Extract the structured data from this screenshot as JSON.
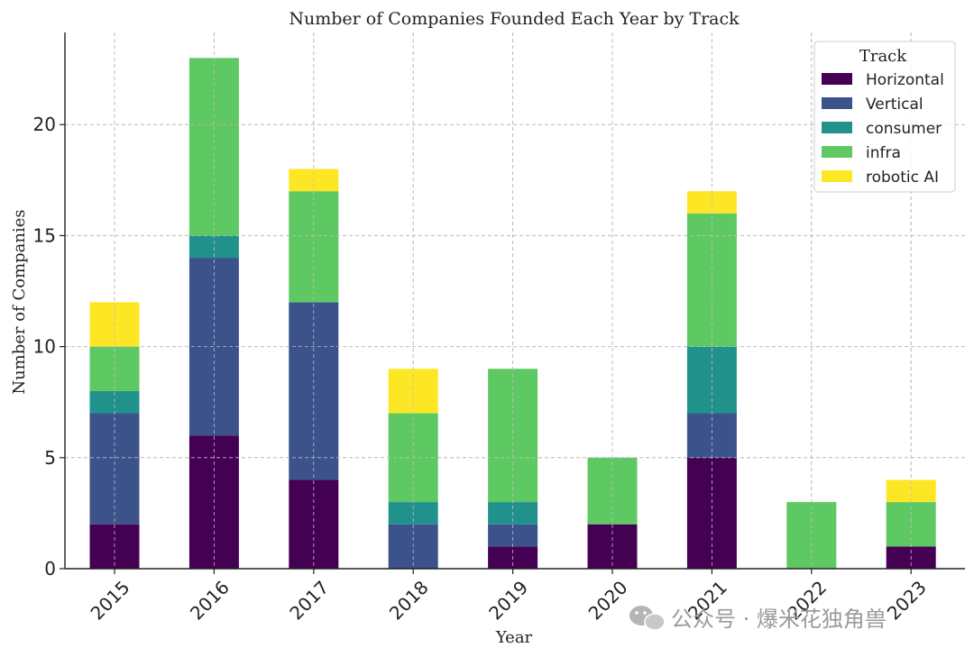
{
  "chart_data": {
    "type": "bar",
    "stacked": true,
    "title": "Number of Companies Founded Each Year by Track",
    "xlabel": "Year",
    "ylabel": "Number of Companies",
    "categories": [
      "2015",
      "2016",
      "2017",
      "2018",
      "2019",
      "2020",
      "2021",
      "2022",
      "2023"
    ],
    "ylim": [
      0,
      24.15
    ],
    "yticks": [
      0,
      5,
      10,
      15,
      20
    ],
    "grid": true,
    "legend": {
      "title": "Track",
      "position": "top-right"
    },
    "series": [
      {
        "name": "Horizontal",
        "color": "#440154",
        "values": [
          2,
          6,
          4,
          0,
          1,
          2,
          5,
          0,
          1
        ]
      },
      {
        "name": "Vertical",
        "color": "#3b528b",
        "values": [
          5,
          8,
          8,
          2,
          1,
          0,
          2,
          0,
          0
        ]
      },
      {
        "name": "consumer",
        "color": "#21918c",
        "values": [
          1,
          1,
          0,
          1,
          1,
          0,
          3,
          0,
          0
        ]
      },
      {
        "name": "infra",
        "color": "#5ec962",
        "values": [
          2,
          8,
          5,
          4,
          6,
          3,
          6,
          3,
          2
        ]
      },
      {
        "name": "robotic AI",
        "color": "#fde725",
        "values": [
          2,
          0,
          1,
          2,
          0,
          0,
          1,
          0,
          1
        ]
      }
    ]
  },
  "watermark": {
    "text": "公众号 · 爆米花独角兽",
    "icon": "wechat-icon"
  }
}
